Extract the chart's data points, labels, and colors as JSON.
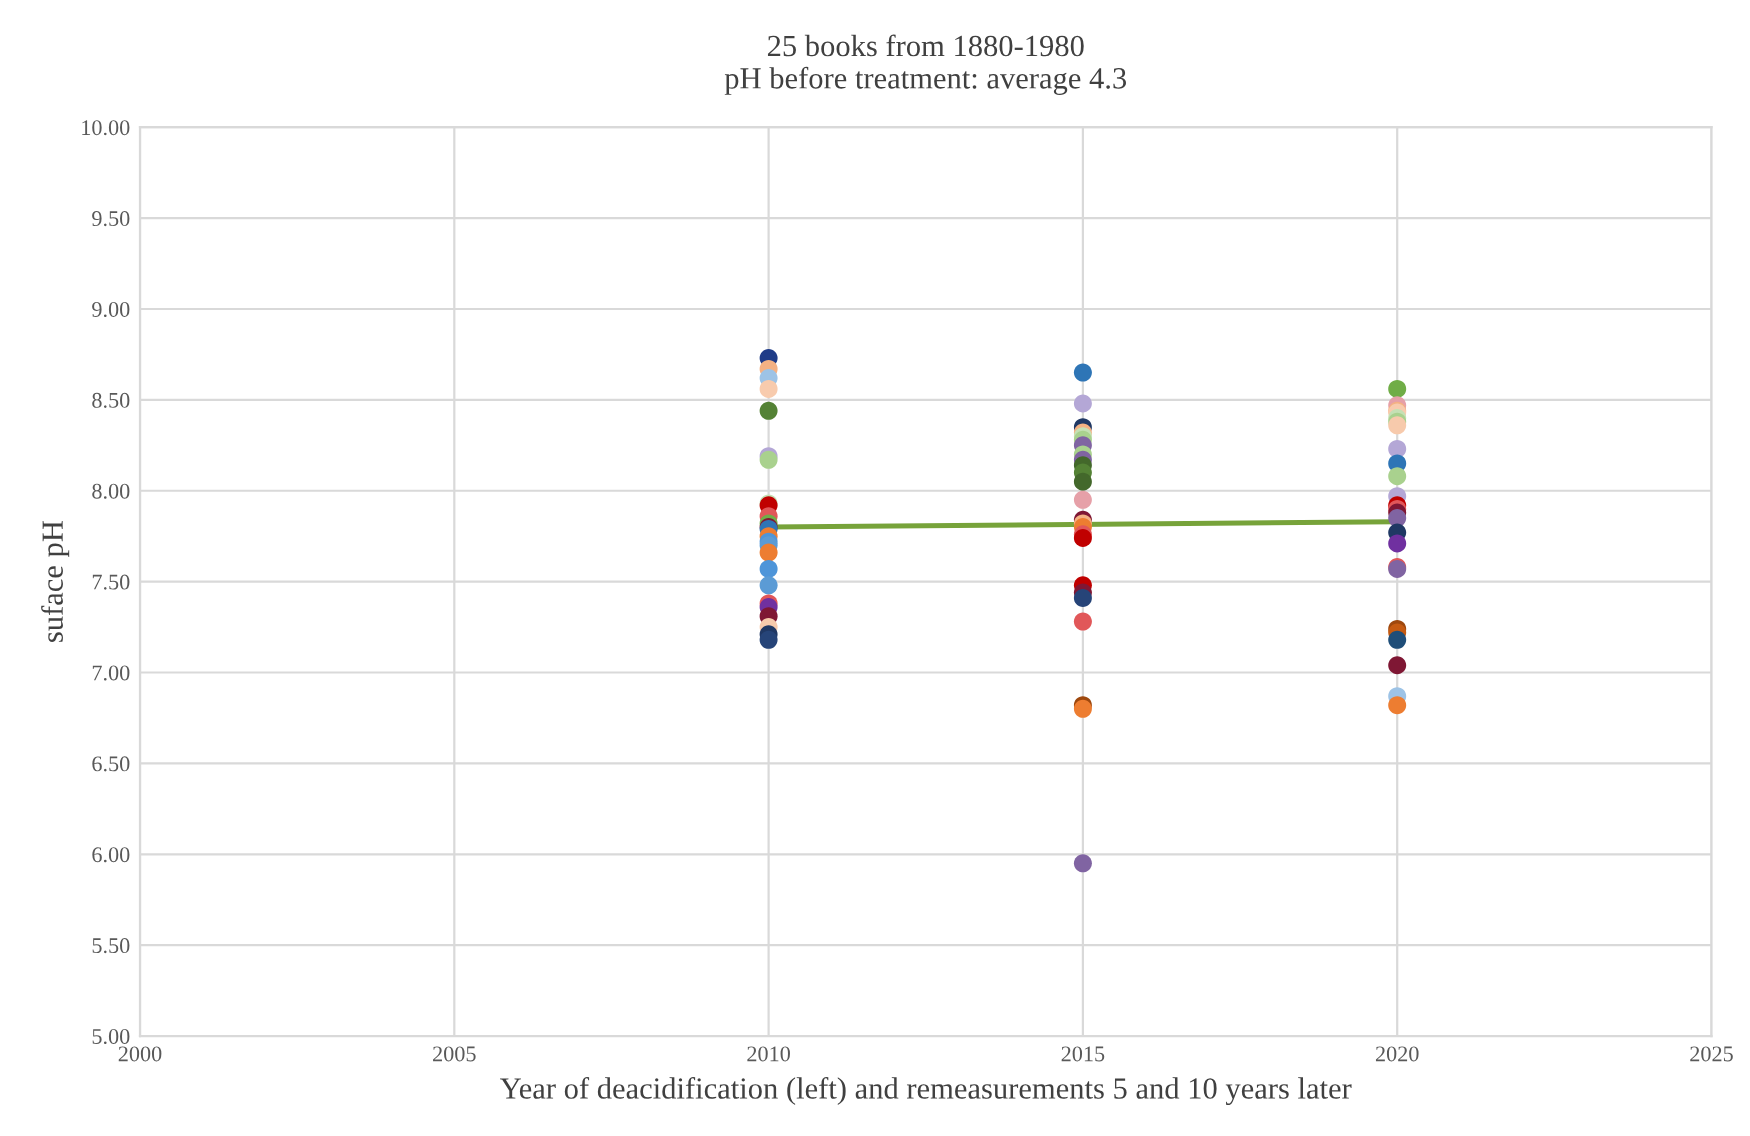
{
  "chart_data": {
    "type": "scatter",
    "title": "25 books from 1880-1980\npH before treatment: average 4.3",
    "xlabel": "Year of deacidification (left) and remeasurements 5 and 10 years later",
    "ylabel": "suface pH",
    "xlim": [
      2000,
      2025
    ],
    "xticks": [
      2000,
      2005,
      2010,
      2015,
      2020,
      2025
    ],
    "ylim": [
      5,
      10
    ],
    "yticks": [
      {
        "value": 5,
        "label": "5.00"
      },
      {
        "value": 5.5,
        "label": "5.50"
      },
      {
        "value": 6,
        "label": "6.00"
      },
      {
        "value": 6.5,
        "label": "6.50"
      },
      {
        "value": 7,
        "label": "7.00"
      },
      {
        "value": 7.5,
        "label": "7.50"
      },
      {
        "value": 8,
        "label": "8.00"
      },
      {
        "value": 8.5,
        "label": "8.50"
      },
      {
        "value": 9,
        "label": "9.00"
      },
      {
        "value": 9.5,
        "label": "9.50"
      },
      {
        "value": 10,
        "label": "10.00"
      }
    ],
    "grid": true,
    "series": [
      {
        "marker": "circle",
        "x": [
          2010,
          2010,
          2010,
          2010,
          2010,
          2010,
          2010,
          2010,
          2010,
          2010,
          2010,
          2010,
          2010,
          2010,
          2010,
          2010,
          2010,
          2010,
          2010,
          2010,
          2010,
          2010,
          2010,
          2010,
          2010,
          2015,
          2015,
          2015,
          2015,
          2015,
          2015,
          2015,
          2015,
          2015,
          2015,
          2015,
          2015,
          2015,
          2015,
          2015,
          2015,
          2015,
          2015,
          2015,
          2015,
          2015,
          2015,
          2015,
          2015,
          2015,
          2020,
          2020,
          2020,
          2020,
          2020,
          2020,
          2020,
          2020,
          2020,
          2020,
          2020,
          2020,
          2020,
          2020,
          2020,
          2020,
          2020,
          2020,
          2020,
          2020,
          2020,
          2020,
          2020,
          2020,
          2020
        ],
        "values": [
          8.73,
          8.67,
          8.62,
          8.56,
          8.44,
          8.19,
          8.17,
          7.93,
          7.92,
          7.86,
          7.82,
          7.8,
          7.79,
          7.75,
          7.72,
          7.7,
          7.66,
          7.57,
          7.48,
          7.38,
          7.36,
          7.31,
          7.25,
          7.21,
          7.18,
          8.65,
          8.48,
          8.35,
          8.32,
          8.3,
          8.28,
          8.25,
          8.2,
          8.17,
          8.14,
          8.1,
          8.05,
          7.95,
          7.84,
          7.82,
          7.8,
          7.76,
          7.74,
          7.48,
          7.44,
          7.41,
          7.28,
          6.82,
          6.8,
          5.95,
          8.56,
          8.47,
          8.44,
          8.43,
          8.4,
          8.38,
          8.36,
          8.23,
          8.15,
          8.08,
          7.97,
          7.92,
          7.9,
          7.88,
          7.85,
          7.77,
          7.71,
          7.58,
          7.57,
          7.24,
          7.22,
          7.18,
          7.04,
          6.87,
          6.82
        ],
        "colors": [
          "#1f3c88",
          "#f4b183",
          "#9dc3e6",
          "#f8cbad",
          "#548235",
          "#b4a7d6",
          "#a9d18e",
          "#c5e0b4",
          "#c00000",
          "#e15759",
          "#70ad47",
          "#7f1734",
          "#2e75b6",
          "#ed7d31",
          "#4e95d9",
          "#5b9bd5",
          "#ed7d31",
          "#4e95d9",
          "#5b9bd5",
          "#e15759",
          "#7030a0",
          "#7f1734",
          "#f7caac",
          "#203864",
          "#264478",
          "#2e75b6",
          "#b4a7d6",
          "#203864",
          "#f4b183",
          "#c5e0b4",
          "#a9d18e",
          "#8064a2",
          "#a9d18e",
          "#8064a2",
          "#43682b",
          "#548235",
          "#43682b",
          "#e6a0a8",
          "#7f1734",
          "#f4b183",
          "#ed7d31",
          "#e15759",
          "#c00000",
          "#c00000",
          "#7f1734",
          "#264478",
          "#e15759",
          "#9e480e",
          "#ed7d31",
          "#8064a2",
          "#70ad47",
          "#e6a0a8",
          "#f4b183",
          "#f8cbad",
          "#c5e0b4",
          "#a9d18e",
          "#f7caac",
          "#b4a7d6",
          "#2e75b6",
          "#a9d18e",
          "#b4a7d6",
          "#c00000",
          "#e15759",
          "#7f1734",
          "#8064a2",
          "#203864",
          "#7030a0",
          "#e15759",
          "#8064a2",
          "#9e480e",
          "#c55a11",
          "#1f4e79",
          "#7f1734",
          "#9dc3e6",
          "#ed7d31"
        ]
      },
      {
        "type": "line",
        "x": [
          2010,
          2020
        ],
        "values": [
          7.8,
          7.83
        ],
        "color": "#77a33a"
      }
    ]
  }
}
